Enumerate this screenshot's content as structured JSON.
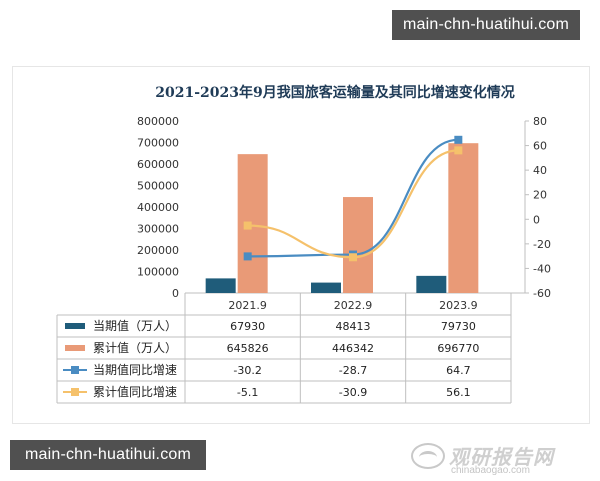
{
  "watermark": {
    "top": "main-chn-huatihui.com",
    "bottom": "main-chn-huatihui.com"
  },
  "logo": {
    "cn": "观研报告网",
    "en": "chinabaogao.com"
  },
  "chart_data": {
    "type": "bar",
    "title": "2021-2023年9月我国旅客运输量及其同比增速变化情况",
    "categories": [
      "2021.9",
      "2022.9",
      "2023.9"
    ],
    "series": [
      {
        "name": "当期值（万人）",
        "kind": "bar",
        "axis": "left",
        "color": "#1f5c7a",
        "values": [
          67930,
          48413,
          79730
        ]
      },
      {
        "name": "累计值（万人）",
        "kind": "bar",
        "axis": "left",
        "color": "#e99a77",
        "values": [
          645826,
          446342,
          696770
        ]
      },
      {
        "name": "当期值同比增速",
        "kind": "line",
        "axis": "right",
        "color": "#4a8cc2",
        "values": [
          -30.2,
          -28.7,
          64.7
        ]
      },
      {
        "name": "累计值同比增速",
        "kind": "line",
        "axis": "right",
        "color": "#f5c16b",
        "values": [
          -5.1,
          -30.9,
          56.1
        ]
      }
    ],
    "y_left": {
      "min": 0,
      "max": 800000,
      "ticks": [
        0,
        100000,
        200000,
        300000,
        400000,
        500000,
        600000,
        700000,
        800000
      ]
    },
    "y_right": {
      "min": -60,
      "max": 80,
      "ticks": [
        -60,
        -40,
        -20,
        0,
        20,
        40,
        60,
        80
      ]
    },
    "data_table": true,
    "grid": false
  }
}
